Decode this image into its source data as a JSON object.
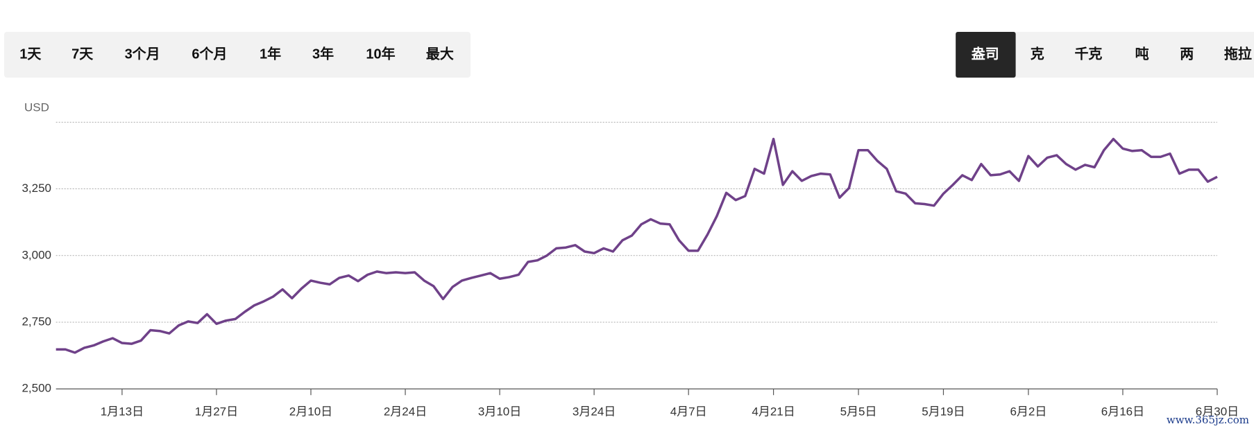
{
  "controls": {
    "ranges": [
      "1天",
      "7天",
      "3个月",
      "6个月",
      "1年",
      "3年",
      "10年",
      "最大"
    ],
    "units": [
      "盎司",
      "克",
      "千克",
      "吨",
      "两",
      "拖拉"
    ],
    "active_unit": 0
  },
  "watermark": "www.365jz.com",
  "chart_data": {
    "type": "line",
    "y_axis_label": "USD",
    "categories": [
      null,
      null,
      null,
      null,
      null,
      null,
      null,
      "1月13日",
      null,
      null,
      null,
      null,
      null,
      null,
      null,
      null,
      null,
      "1月27日",
      null,
      null,
      null,
      null,
      null,
      null,
      null,
      null,
      null,
      "2月10日",
      null,
      null,
      null,
      null,
      null,
      null,
      null,
      null,
      null,
      "2月24日",
      null,
      null,
      null,
      null,
      null,
      null,
      null,
      null,
      null,
      "3月10日",
      null,
      null,
      null,
      null,
      null,
      null,
      null,
      null,
      null,
      "3月24日",
      null,
      null,
      null,
      null,
      null,
      null,
      null,
      null,
      null,
      "4月7日",
      null,
      null,
      null,
      null,
      null,
      null,
      null,
      null,
      "4月21日",
      null,
      null,
      null,
      null,
      null,
      null,
      null,
      null,
      "5月5日",
      null,
      null,
      null,
      null,
      null,
      null,
      null,
      null,
      "5月19日",
      null,
      null,
      null,
      null,
      null,
      null,
      null,
      null,
      "6月2日",
      null,
      null,
      null,
      null,
      null,
      null,
      null,
      null,
      null,
      "6月16日",
      null,
      null,
      null,
      null,
      null,
      null,
      null,
      null,
      null,
      "6月30日"
    ],
    "series": [
      {
        "color": "#6f4189",
        "values": [
          2648,
          2648,
          2636,
          2654,
          2663,
          2678,
          2690,
          2672,
          2669,
          2681,
          2720,
          2717,
          2708,
          2738,
          2753,
          2747,
          2780,
          2744,
          2756,
          2762,
          2789,
          2813,
          2828,
          2846,
          2873,
          2840,
          2876,
          2906,
          2898,
          2892,
          2916,
          2925,
          2904,
          2928,
          2940,
          2934,
          2937,
          2934,
          2937,
          2906,
          2885,
          2837,
          2882,
          2906,
          2916,
          2925,
          2934,
          2913,
          2919,
          2928,
          2976,
          2982,
          3000,
          3027,
          3030,
          3039,
          3015,
          3009,
          3027,
          3015,
          3057,
          3075,
          3117,
          3136,
          3120,
          3117,
          3057,
          3018,
          3018,
          3078,
          3148,
          3235,
          3208,
          3223,
          3325,
          3307,
          3437,
          3265,
          3316,
          3280,
          3298,
          3307,
          3304,
          3217,
          3253,
          3395,
          3395,
          3355,
          3325,
          3241,
          3232,
          3196,
          3193,
          3187,
          3232,
          3265,
          3301,
          3283,
          3343,
          3301,
          3304,
          3316,
          3280,
          3373,
          3334,
          3367,
          3376,
          3343,
          3322,
          3340,
          3331,
          3395,
          3437,
          3401,
          3392,
          3395,
          3370,
          3370,
          3382,
          3307,
          3322,
          3322,
          3277,
          3295
        ]
      }
    ],
    "ylim": [
      2500,
      3500
    ],
    "yticks": [
      {
        "value": 2500,
        "label": "2,500"
      },
      {
        "value": 2750,
        "label": "2,750"
      },
      {
        "value": 3000,
        "label": "3,000"
      },
      {
        "value": 3250,
        "label": "3,250"
      }
    ],
    "grid": true
  }
}
